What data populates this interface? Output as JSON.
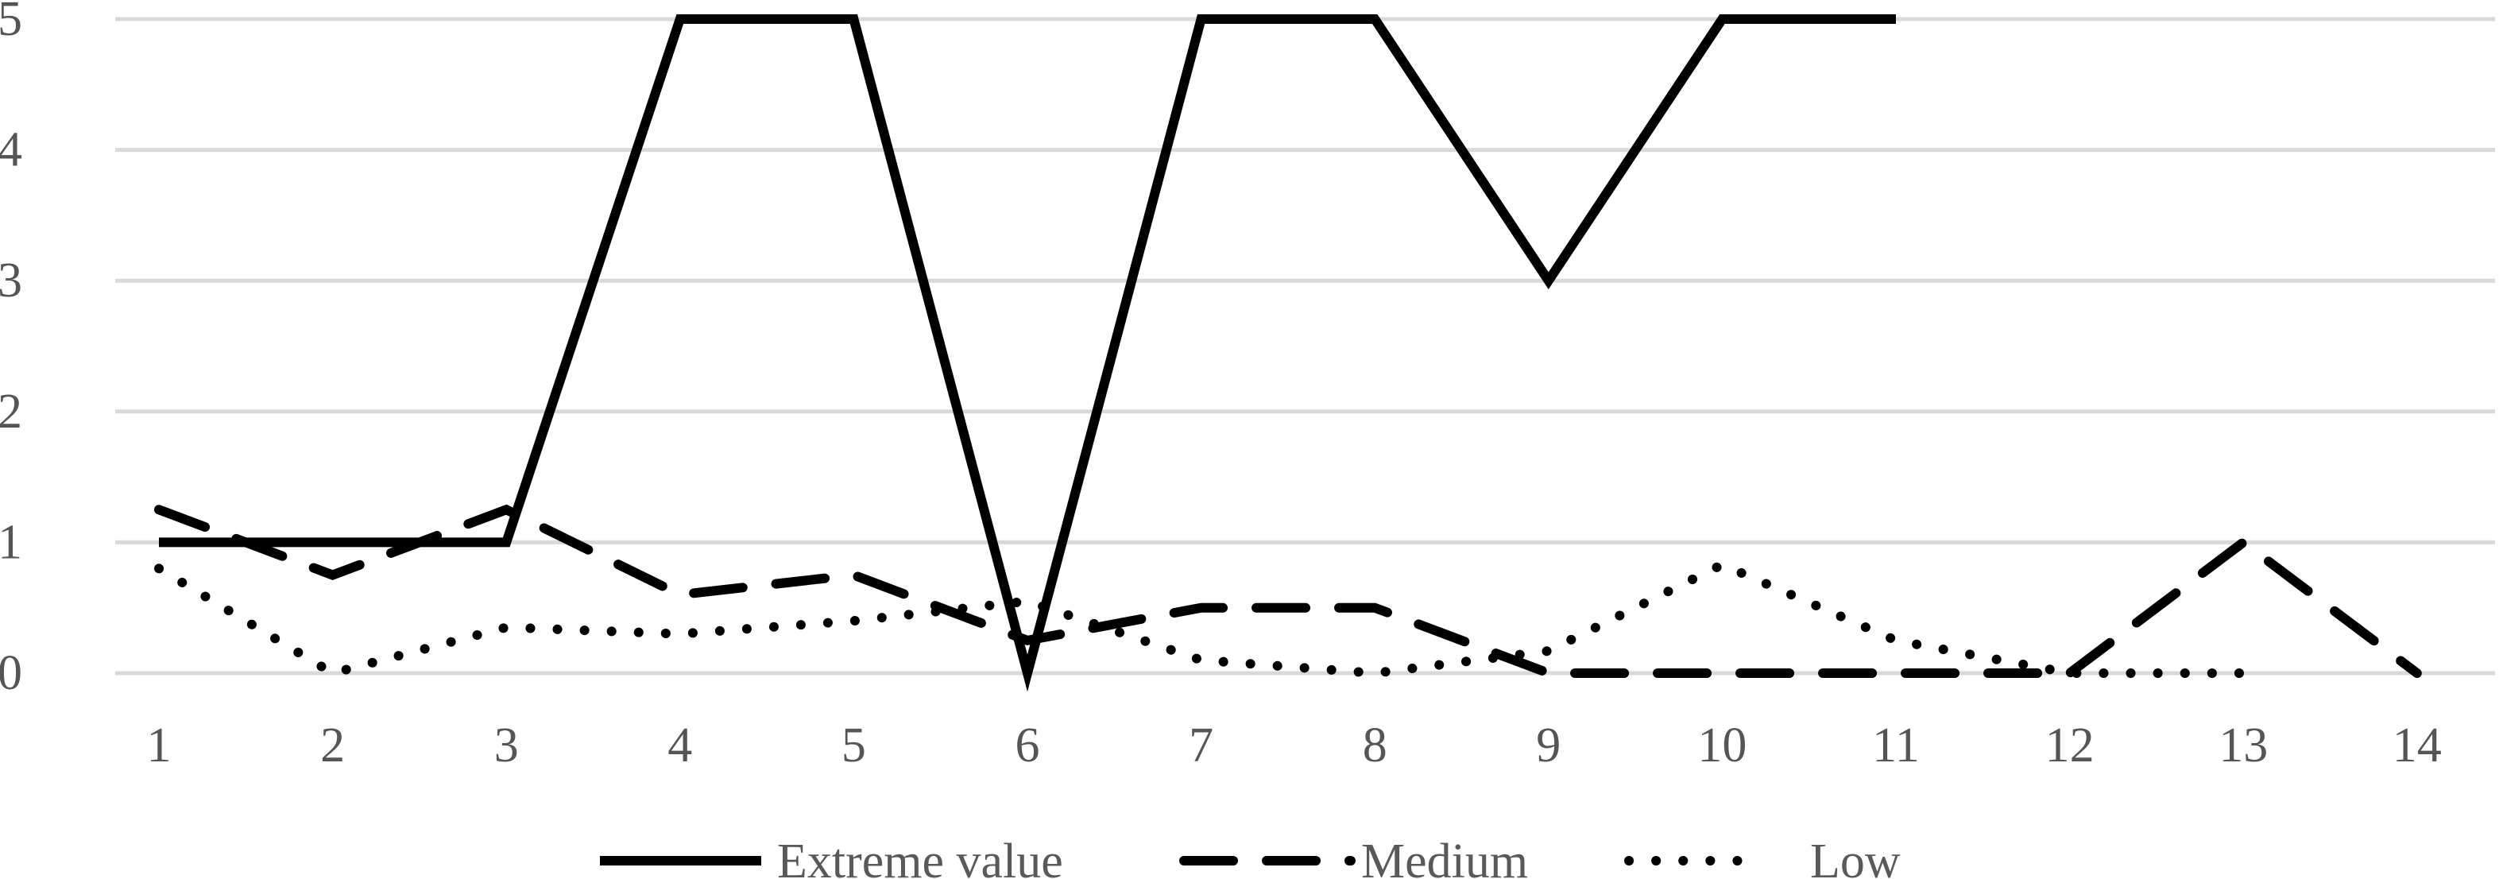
{
  "chart_data": {
    "type": "line",
    "x": [
      1,
      2,
      3,
      4,
      5,
      6,
      7,
      8,
      9,
      10,
      11,
      12,
      13,
      14
    ],
    "ylim": [
      0,
      5
    ],
    "yticks": [
      0,
      1,
      2,
      3,
      4,
      5
    ],
    "grid": true,
    "legend_position": "bottom",
    "series": [
      {
        "name": "Extreme value",
        "style": "solid",
        "values": [
          1,
          1,
          1,
          5,
          5,
          0,
          5,
          5,
          3,
          5,
          5,
          null,
          null,
          null
        ]
      },
      {
        "name": "Medium",
        "style": "dashed",
        "values": [
          1.25,
          0.75,
          1.25,
          0.6,
          0.75,
          0.25,
          0.5,
          0.5,
          0,
          0,
          0,
          0,
          1,
          0
        ]
      },
      {
        "name": "Low",
        "style": "dotted",
        "values": [
          0.8,
          0,
          0.35,
          0.3,
          0.4,
          0.55,
          0.1,
          0,
          0.17,
          0.83,
          0.25,
          0,
          0,
          null
        ]
      }
    ],
    "colors": {
      "line": "#000000",
      "grid": "#d9d9d9",
      "text": "#595959"
    }
  }
}
